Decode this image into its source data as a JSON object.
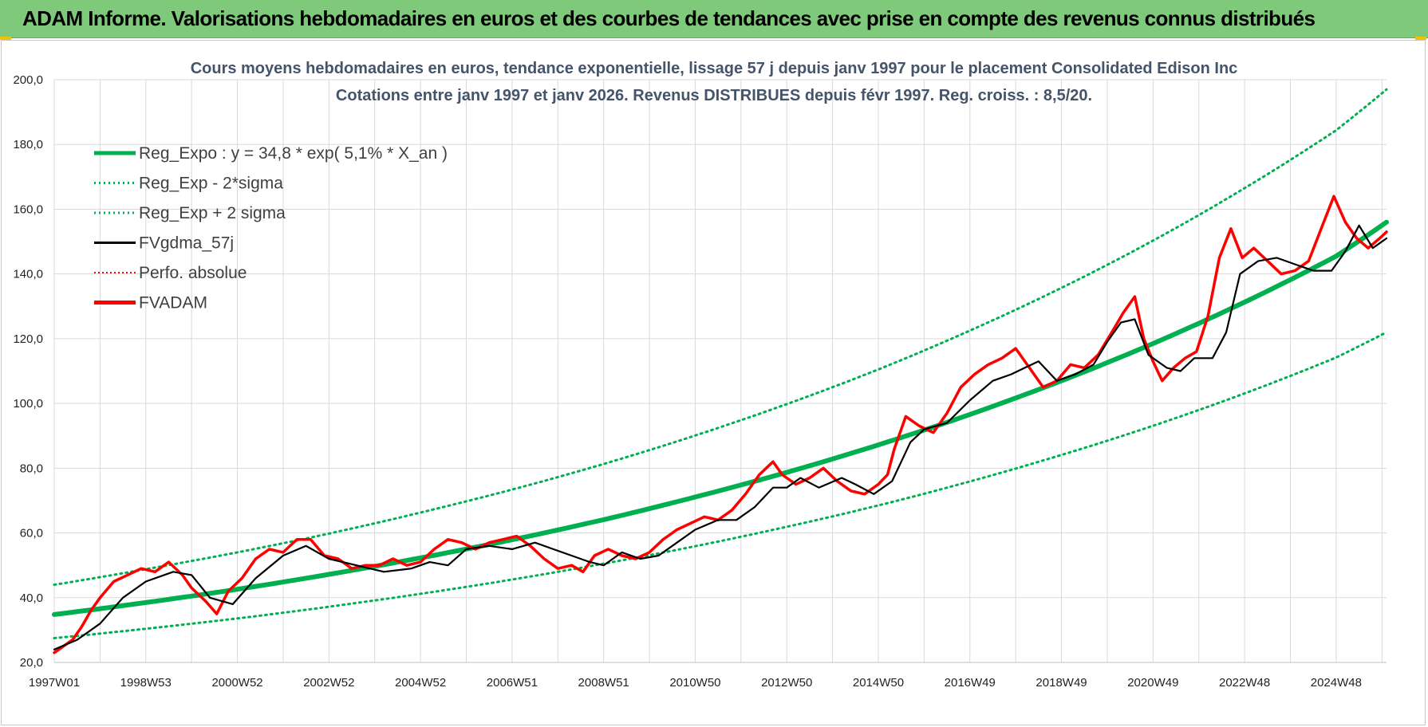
{
  "header": {
    "title": "ADAM Informe. Valorisations hebdomadaires en euros et des courbes de tendances avec prise en compte des revenus connus distribués"
  },
  "colors": {
    "banner": "#7fc97a",
    "trend": "#00b050",
    "fvgdma": "#000000",
    "fvadam": "#ff0000",
    "perfo": "#ff0000",
    "grid": "#d9d9d9"
  },
  "chart_data": {
    "type": "line",
    "title_line1": "Cours moyens hebdomadaires en euros, tendance exponentielle, lissage 57 j depuis janv 1997 pour le placement Consolidated Edison Inc",
    "title_line2": "Cotations entre janv 1997 et janv 2026. Revenus DISTRIBUES depuis févr 1997. Reg. croiss. : 8,5/20.",
    "xlabel": "",
    "ylabel": "",
    "ylim": [
      20,
      200
    ],
    "xlim": [
      1997.0,
      2026.1
    ],
    "y_ticks": [
      "20,0",
      "40,0",
      "60,0",
      "80,0",
      "100,0",
      "120,0",
      "140,0",
      "160,0",
      "180,0",
      "200,0"
    ],
    "x_ticks": [
      {
        "label": "1997W01",
        "x": 1997.0
      },
      {
        "label": "1998W53",
        "x": 1999.0
      },
      {
        "label": "2000W52",
        "x": 2001.0
      },
      {
        "label": "2002W52",
        "x": 2003.0
      },
      {
        "label": "2004W52",
        "x": 2005.0
      },
      {
        "label": "2006W51",
        "x": 2007.0
      },
      {
        "label": "2008W51",
        "x": 2009.0
      },
      {
        "label": "2010W50",
        "x": 2011.0
      },
      {
        "label": "2012W50",
        "x": 2013.0
      },
      {
        "label": "2014W50",
        "x": 2015.0
      },
      {
        "label": "2016W49",
        "x": 2017.0
      },
      {
        "label": "2018W49",
        "x": 2019.0
      },
      {
        "label": "2020W49",
        "x": 2021.0
      },
      {
        "label": "2022W48",
        "x": 2023.0
      },
      {
        "label": "2024W48",
        "x": 2025.0
      }
    ],
    "grid": true,
    "legend_position": "top-left",
    "legend": [
      {
        "label": "Reg_Expo : y = 34,8 * exp( 5,1% *  X_an )",
        "style": "solid-thick",
        "color": "#00b050"
      },
      {
        "label": "Reg_Exp - 2*sigma",
        "style": "dotted",
        "color": "#00b050"
      },
      {
        "label": "Reg_Exp + 2 sigma",
        "style": "dotted",
        "color": "#00b050"
      },
      {
        "label": "FVgdma_57j",
        "style": "solid",
        "color": "#000000"
      },
      {
        "label": "Perfo. absolue",
        "style": "dotted-thin",
        "color": "#ff0000"
      },
      {
        "label": "FVADAM",
        "style": "solid-thick",
        "color": "#ff0000"
      }
    ],
    "series": [
      {
        "name": "Reg_Expo : y = 34,8 * exp( 5,1% *  X_an )",
        "x": [
          1997.0,
          1999.0,
          2001.0,
          2003.0,
          2005.0,
          2007.0,
          2009.0,
          2011.0,
          2013.0,
          2015.0,
          2017.0,
          2019.0,
          2021.0,
          2023.0,
          2025.0,
          2026.1
        ],
        "values": [
          34.8,
          38.5,
          42.6,
          47.2,
          52.3,
          57.9,
          64.1,
          71.1,
          78.7,
          87.2,
          96.6,
          107.0,
          118.5,
          131.3,
          145.5,
          156.0
        ]
      },
      {
        "name": "Reg_Exp + 2 sigma",
        "x": [
          1997.0,
          1999.0,
          2001.0,
          2003.0,
          2005.0,
          2007.0,
          2009.0,
          2011.0,
          2013.0,
          2015.0,
          2017.0,
          2019.0,
          2021.0,
          2023.0,
          2025.0,
          2026.1
        ],
        "values": [
          44.0,
          48.8,
          54.0,
          59.8,
          66.3,
          73.4,
          81.3,
          90.1,
          99.8,
          110.5,
          122.5,
          135.7,
          150.3,
          166.5,
          184.4,
          197.0
        ]
      },
      {
        "name": "Reg_Exp - 2*sigma",
        "x": [
          1997.0,
          1999.0,
          2001.0,
          2003.0,
          2005.0,
          2007.0,
          2009.0,
          2011.0,
          2013.0,
          2015.0,
          2017.0,
          2019.0,
          2021.0,
          2023.0,
          2025.0,
          2026.1
        ],
        "values": [
          27.5,
          30.4,
          33.6,
          37.2,
          41.2,
          45.6,
          50.5,
          55.9,
          61.9,
          68.5,
          75.9,
          84.1,
          93.1,
          103.1,
          114.2,
          122.0
        ]
      },
      {
        "name": "FVgdma_57j",
        "x": [
          1997.0,
          1997.5,
          1998.0,
          1998.5,
          1999.0,
          1999.6,
          2000.0,
          2000.4,
          2000.9,
          2001.4,
          2002.0,
          2002.5,
          2003.0,
          2003.6,
          2004.2,
          2004.8,
          2005.2,
          2005.6,
          2006.0,
          2006.5,
          2007.0,
          2007.5,
          2007.9,
          2008.3,
          2008.7,
          2009.0,
          2009.4,
          2009.8,
          2010.2,
          2010.6,
          2011.0,
          2011.5,
          2011.9,
          2012.3,
          2012.7,
          2013.0,
          2013.3,
          2013.7,
          2014.2,
          2014.5,
          2014.9,
          2015.3,
          2015.7,
          2016.0,
          2016.5,
          2017.0,
          2017.5,
          2017.9,
          2018.2,
          2018.5,
          2018.9,
          2019.3,
          2019.7,
          2020.0,
          2020.3,
          2020.6,
          2020.9,
          2021.3,
          2021.6,
          2021.9,
          2022.3,
          2022.6,
          2022.9,
          2023.3,
          2023.7,
          2024.1,
          2024.5,
          2024.9,
          2025.2,
          2025.5,
          2025.8,
          2026.1
        ],
        "values": [
          24,
          27,
          32,
          40,
          45,
          48,
          47,
          40,
          38,
          46,
          53,
          56,
          52,
          50,
          48,
          49,
          51,
          50,
          55,
          56,
          55,
          57,
          55,
          53,
          51,
          50,
          54,
          52,
          53,
          57,
          61,
          64,
          64,
          68,
          74,
          74,
          77,
          74,
          77,
          75,
          72,
          76,
          88,
          92,
          94,
          101,
          107,
          109,
          111,
          113,
          107,
          109,
          112,
          119,
          125,
          126,
          115,
          111,
          110,
          114,
          114,
          122,
          140,
          144,
          145,
          143,
          141,
          141,
          147,
          155,
          148,
          151
        ]
      },
      {
        "name": "FVADAM",
        "x": [
          1997.0,
          1997.2,
          1997.4,
          1997.6,
          1997.8,
          1998.0,
          1998.3,
          1998.6,
          1998.9,
          1999.2,
          1999.5,
          1999.8,
          2000.0,
          2000.3,
          2000.55,
          2000.8,
          2001.1,
          2001.4,
          2001.7,
          2002.0,
          2002.3,
          2002.6,
          2002.9,
          2003.2,
          2003.5,
          2003.8,
          2004.1,
          2004.4,
          2004.7,
          2005.0,
          2005.3,
          2005.6,
          2005.9,
          2006.2,
          2006.5,
          2006.8,
          2007.1,
          2007.4,
          2007.7,
          2008.0,
          2008.3,
          2008.55,
          2008.8,
          2009.1,
          2009.4,
          2009.7,
          2010.0,
          2010.3,
          2010.6,
          2010.9,
          2011.2,
          2011.5,
          2011.8,
          2012.1,
          2012.4,
          2012.7,
          2012.9,
          2013.2,
          2013.5,
          2013.8,
          2014.1,
          2014.4,
          2014.7,
          2015.0,
          2015.2,
          2015.35,
          2015.6,
          2015.9,
          2016.2,
          2016.5,
          2016.8,
          2017.1,
          2017.4,
          2017.7,
          2018.0,
          2018.3,
          2018.6,
          2018.9,
          2019.2,
          2019.5,
          2019.8,
          2020.1,
          2020.35,
          2020.6,
          2020.8,
          2021.0,
          2021.2,
          2021.45,
          2021.7,
          2021.95,
          2022.2,
          2022.45,
          2022.7,
          2022.95,
          2023.2,
          2023.5,
          2023.8,
          2024.1,
          2024.4,
          2024.7,
          2024.95,
          2025.2,
          2025.45,
          2025.7,
          2025.95,
          2026.1
        ],
        "values": [
          23,
          25,
          27,
          31,
          36,
          40,
          45,
          47,
          49,
          48,
          51,
          47,
          43,
          39,
          35,
          42,
          46,
          52,
          55,
          54,
          58,
          58,
          53,
          52,
          49,
          50,
          50,
          52,
          50,
          51,
          55,
          58,
          57,
          55,
          57,
          58,
          59,
          56,
          52,
          49,
          50,
          48,
          53,
          55,
          53,
          52,
          54,
          58,
          61,
          63,
          65,
          64,
          67,
          72,
          78,
          82,
          78,
          75,
          77,
          80,
          76,
          73,
          72,
          75,
          78,
          86,
          96,
          93,
          91,
          97,
          105,
          109,
          112,
          114,
          117,
          111,
          105,
          107,
          112,
          111,
          115,
          122,
          128,
          133,
          120,
          113,
          107,
          111,
          114,
          116,
          127,
          145,
          154,
          145,
          148,
          144,
          140,
          141,
          144,
          155,
          164,
          156,
          151,
          148,
          151,
          153
        ]
      }
    ]
  }
}
